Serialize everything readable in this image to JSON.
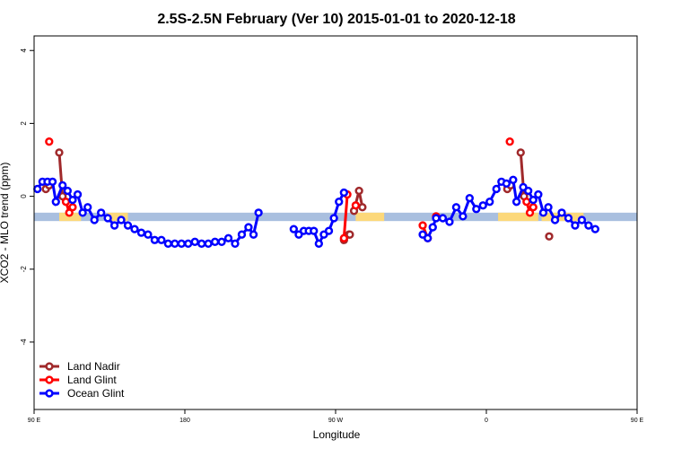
{
  "chart_data": {
    "type": "line",
    "title": "2.5S-2.5N February (Ver 10)   2015-01-01 to 2020-12-18",
    "xlabel": "Longitude",
    "ylabel": "XCO2 - MLO trend (ppm)",
    "xlim": [
      90,
      450
    ],
    "ylim": [
      -5.85,
      4.4
    ],
    "x_ticks": [
      {
        "value": 90,
        "label": "90 E"
      },
      {
        "value": 180,
        "label": "180"
      },
      {
        "value": 270,
        "label": "90 W"
      },
      {
        "value": 360,
        "label": "0"
      },
      {
        "value": 450,
        "label": "90 E"
      },
      {
        "value": 540,
        "label": "180"
      }
    ],
    "y_ticks": [
      {
        "value": 4,
        "label": "4"
      },
      {
        "value": 2,
        "label": "2"
      },
      {
        "value": 0,
        "label": "0"
      },
      {
        "value": -2,
        "label": "-2"
      },
      {
        "value": -4,
        "label": "-4"
      }
    ],
    "x_tick_values_shown": [
      90,
      180,
      270,
      360,
      450,
      540
    ],
    "grid": false,
    "legend_position": "bottom-left",
    "band": {
      "y_min": -0.68,
      "y_max": -0.45,
      "color": "#a9bfdf"
    },
    "land_segments": [
      {
        "x_start": 105,
        "x_end": 118
      },
      {
        "x_start": 134,
        "x_end": 146
      },
      {
        "x_start": 282,
        "x_end": 299
      },
      {
        "x_start": 367,
        "x_end": 391
      },
      {
        "x_start": 393,
        "x_end": 418
      },
      {
        "x_start": 474,
        "x_end": 492
      },
      {
        "x_start": 498,
        "x_end": 508
      }
    ],
    "land_color": "#fcd87a",
    "series": [
      {
        "name": "Land Nadir",
        "color": "#a0292b",
        "segments": [
          [
            [
              97,
              0.2
            ],
            [
              99,
              0.3
            ]
          ],
          [
            [
              105,
              1.2
            ],
            [
              107,
              0
            ]
          ],
          [
            [
              275,
              -1.2
            ],
            [
              278,
              -1.05
            ]
          ],
          [
            [
              281,
              -0.4
            ],
            [
              284,
              0.15
            ],
            [
              286,
              -0.3
            ]
          ],
          [
            [
              372.5,
              0.2
            ],
            [
              374.5,
              0.3
            ]
          ],
          [
            [
              380.5,
              1.2
            ],
            [
              382.5,
              0
            ]
          ],
          [
            [
              278.5,
              -1.05
            ]
          ],
          [
            [
              397.5,
              -1.1
            ]
          ]
        ]
      },
      {
        "name": "Land Glint",
        "color": "#ff0000",
        "segments": [
          [
            [
              99,
              1.5
            ]
          ],
          [
            [
              109,
              -0.15
            ],
            [
              111,
              -0.45
            ],
            [
              113,
              -0.3
            ]
          ],
          [
            [
              275,
              -1.15
            ],
            [
              277,
              0.05
            ]
          ],
          [
            [
              282,
              -0.25
            ]
          ],
          [
            [
              322,
              -0.8
            ],
            [
              325,
              -1.15
            ]
          ],
          [
            [
              330,
              -0.55
            ]
          ],
          [
            [
              374,
              1.5
            ]
          ],
          [
            [
              384,
              -0.15
            ],
            [
              386,
              -0.45
            ],
            [
              388,
              -0.3
            ]
          ]
        ]
      },
      {
        "name": "Ocean Glint",
        "color": "#0000ff",
        "segments": [
          [
            [
              92,
              0.2
            ],
            [
              95,
              0.4
            ],
            [
              98,
              0.4
            ],
            [
              101,
              0.4
            ],
            [
              103,
              -0.15
            ],
            [
              107,
              0.3
            ],
            [
              110,
              0.15
            ],
            [
              113,
              -0.1
            ],
            [
              116,
              0.05
            ],
            [
              119,
              -0.45
            ],
            [
              122,
              -0.3
            ],
            [
              126,
              -0.65
            ],
            [
              130,
              -0.45
            ],
            [
              134,
              -0.6
            ],
            [
              138,
              -0.8
            ],
            [
              142,
              -0.65
            ],
            [
              146,
              -0.8
            ],
            [
              150,
              -0.9
            ],
            [
              154,
              -1.0
            ],
            [
              158,
              -1.05
            ],
            [
              162,
              -1.2
            ],
            [
              166,
              -1.2
            ],
            [
              170,
              -1.3
            ],
            [
              174,
              -1.3
            ],
            [
              178,
              -1.3
            ],
            [
              182,
              -1.3
            ],
            [
              186,
              -1.25
            ],
            [
              190,
              -1.3
            ],
            [
              194,
              -1.3
            ],
            [
              198,
              -1.25
            ],
            [
              202,
              -1.25
            ],
            [
              206,
              -1.15
            ],
            [
              210,
              -1.3
            ],
            [
              214,
              -1.05
            ],
            [
              218,
              -0.85
            ],
            [
              221,
              -1.05
            ],
            [
              224,
              -0.45
            ]
          ],
          [
            [
              245,
              -0.9
            ],
            [
              248,
              -1.05
            ],
            [
              251,
              -0.95
            ],
            [
              254,
              -0.95
            ],
            [
              257,
              -0.95
            ],
            [
              260,
              -1.3
            ],
            [
              263,
              -1.05
            ],
            [
              266,
              -0.95
            ],
            [
              269,
              -0.6
            ],
            [
              272,
              -0.15
            ],
            [
              275,
              0.1
            ]
          ],
          [
            [
              322,
              -1.05
            ],
            [
              325,
              -1.15
            ],
            [
              328,
              -0.85
            ],
            [
              330,
              -0.6
            ],
            [
              334,
              -0.6
            ],
            [
              338,
              -0.7
            ],
            [
              342,
              -0.3
            ],
            [
              346,
              -0.55
            ],
            [
              350,
              -0.05
            ],
            [
              354,
              -0.35
            ],
            [
              358,
              -0.25
            ],
            [
              362,
              -0.15
            ],
            [
              366,
              0.2
            ],
            [
              369,
              0.4
            ],
            [
              372,
              0.35
            ],
            [
              376,
              0.45
            ],
            [
              378,
              -0.15
            ],
            [
              382,
              0.25
            ],
            [
              385,
              0.15
            ],
            [
              388,
              -0.1
            ],
            [
              391,
              0.05
            ],
            [
              394,
              -0.45
            ],
            [
              397,
              -0.3
            ],
            [
              401,
              -0.65
            ],
            [
              405,
              -0.45
            ],
            [
              409,
              -0.6
            ],
            [
              413,
              -0.8
            ],
            [
              417,
              -0.65
            ],
            [
              421,
              -0.8
            ],
            [
              425,
              -0.9
            ]
          ]
        ]
      }
    ]
  }
}
